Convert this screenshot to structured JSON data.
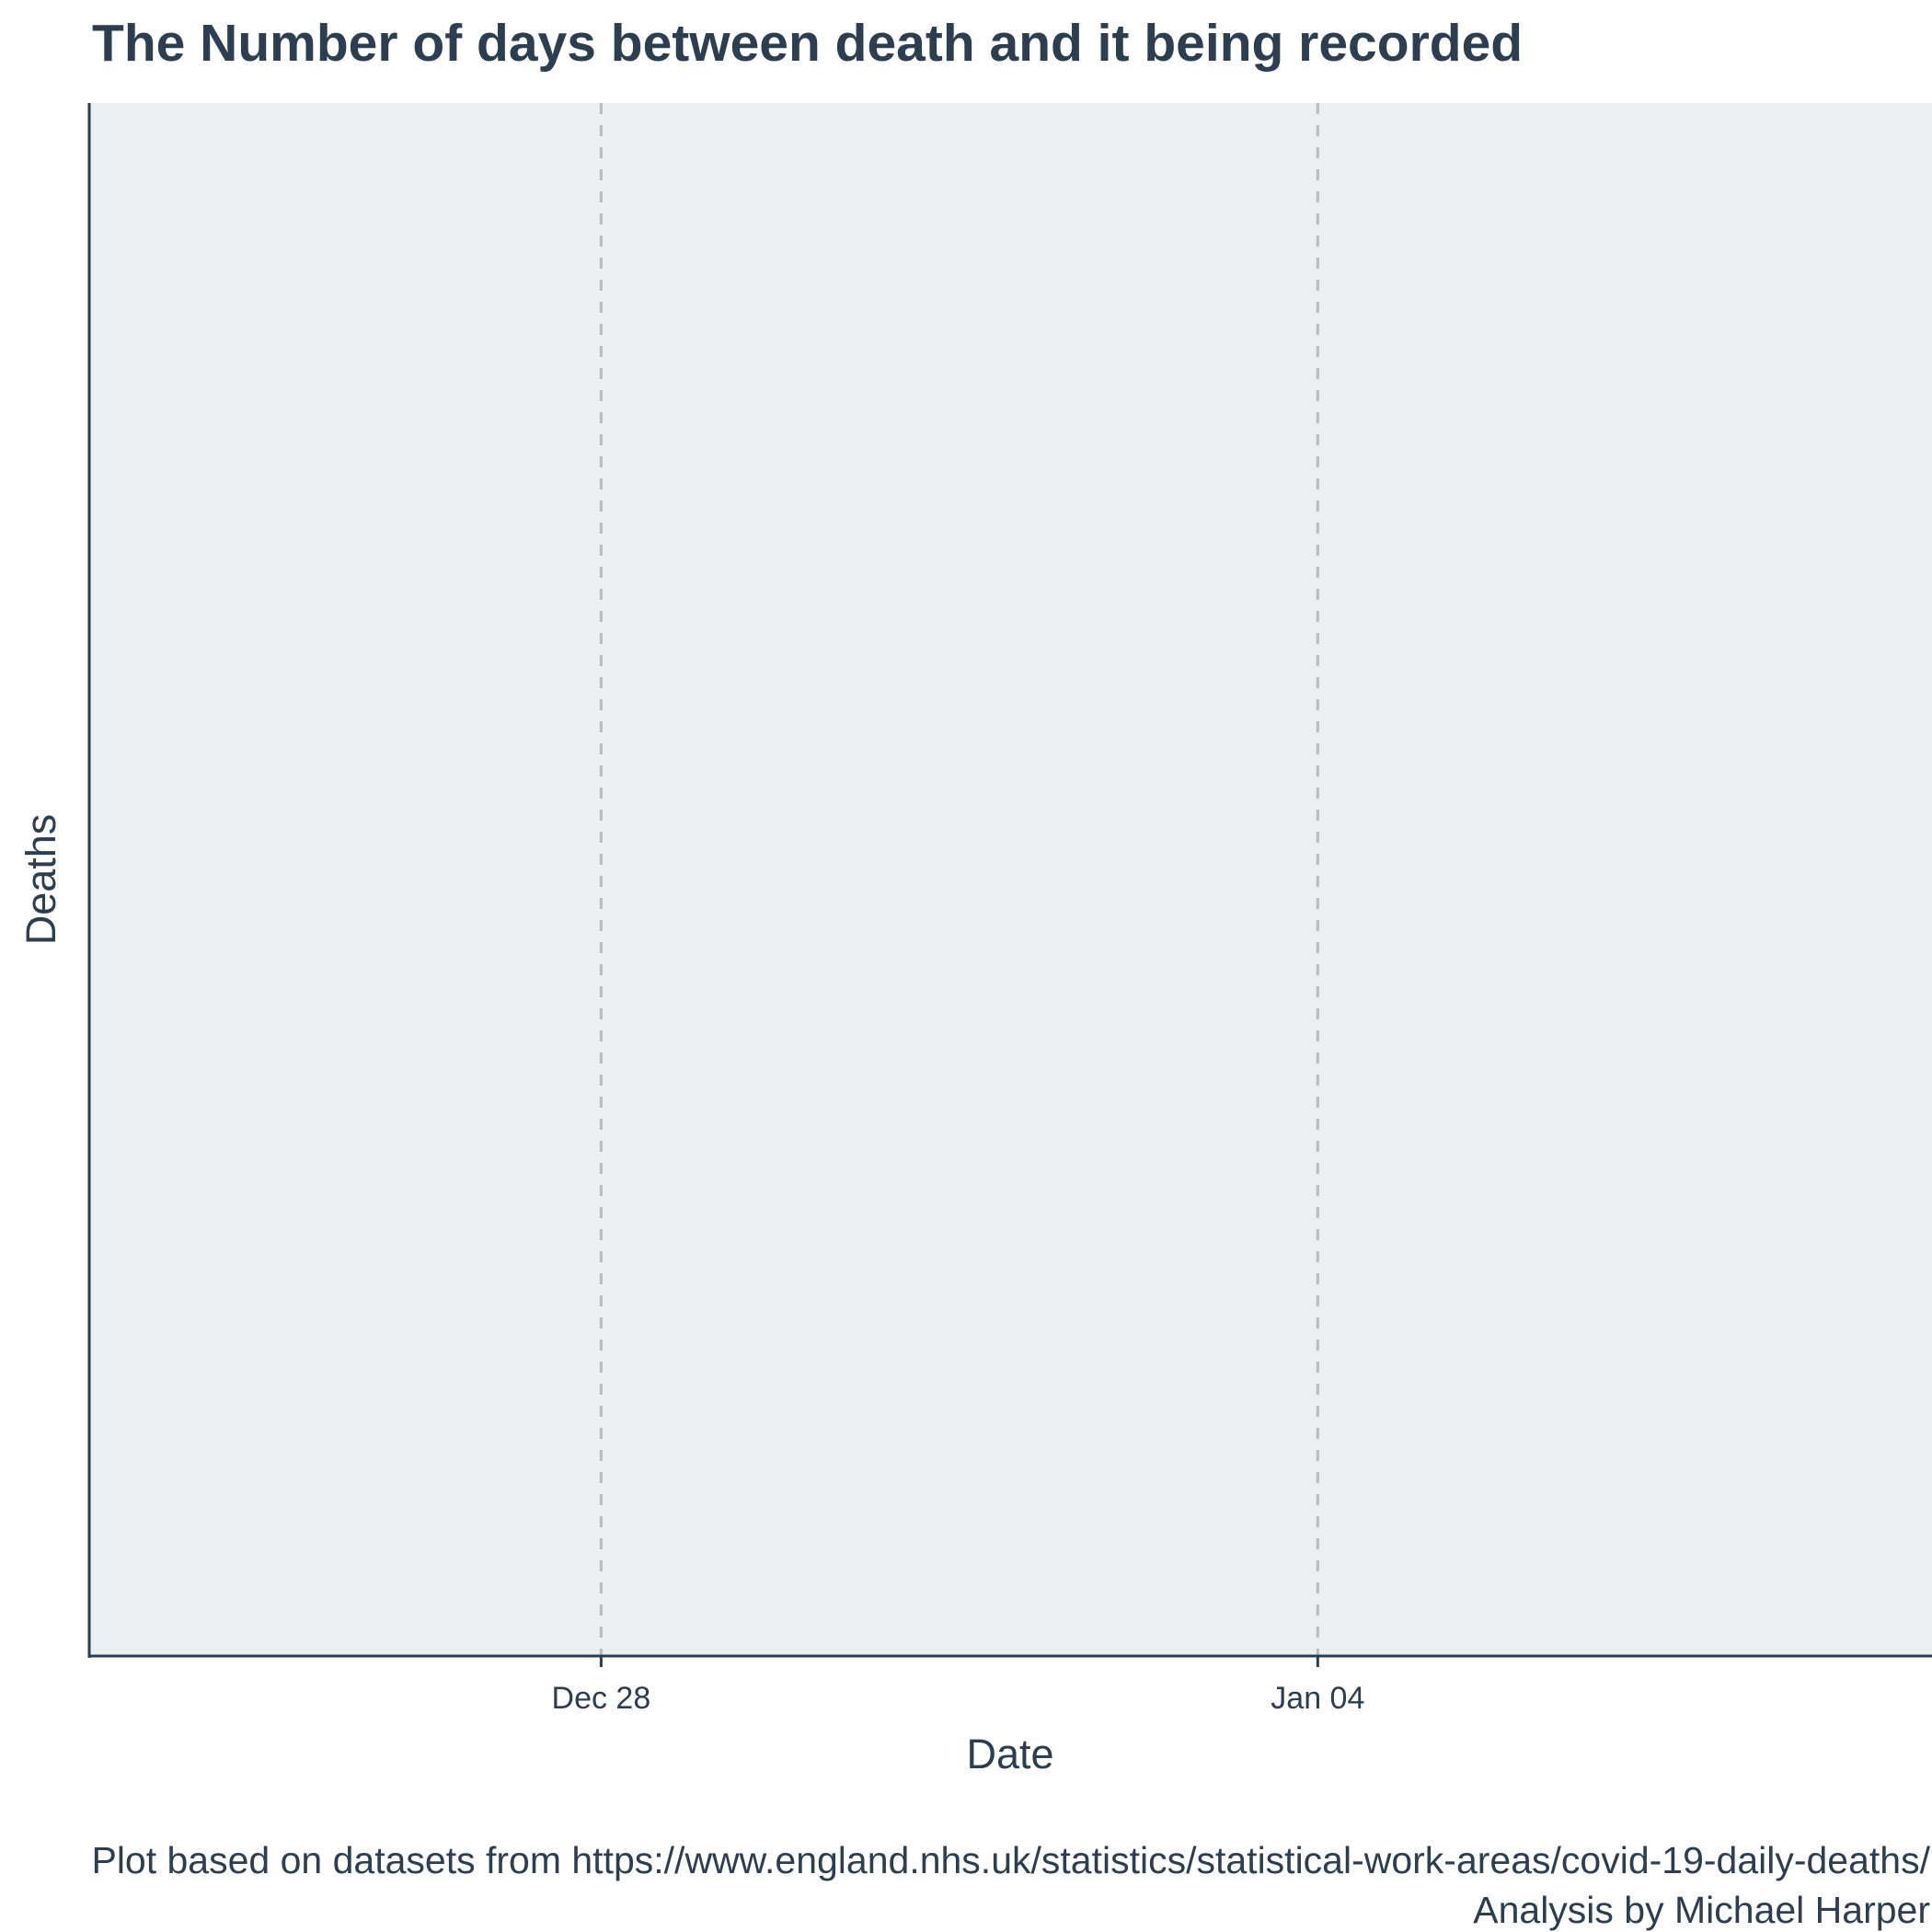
{
  "chart_data": {
    "type": "bar",
    "title": "The Number of days between death and it being recorded",
    "xlabel": "Date",
    "ylabel": "Deaths",
    "x_type": "date",
    "xlim": [
      "2020-12-23",
      "2021-01-10"
    ],
    "x_ticks": [
      {
        "value": "2020-12-28",
        "label": "Dec 28"
      },
      {
        "value": "2021-01-04",
        "label": "Jan 04"
      }
    ],
    "series": [],
    "grid": {
      "x_major": "dashed",
      "y": false
    },
    "background_color": "#ebeff0",
    "grid_color": "#bbbbbb",
    "axis_color": "#2c3e50",
    "caption_line1": "Plot based on datasets from https://www.england.nhs.uk/statistics/statistical-work-areas/covid-19-daily-deaths/",
    "caption_line2": "Analysis by Michael Harper"
  }
}
